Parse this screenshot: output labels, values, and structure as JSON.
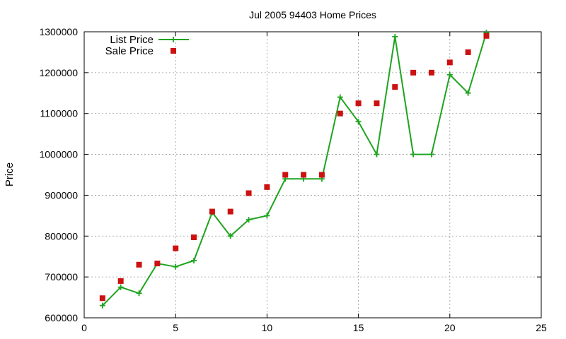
{
  "chart_data": {
    "type": "line",
    "title": "Jul 2005 94403 Home Prices",
    "xlabel": "",
    "ylabel": "Price",
    "xlim": [
      0,
      25
    ],
    "ylim": [
      600000,
      1300000
    ],
    "xticks": [
      "0",
      "5",
      "10",
      "15",
      "20",
      "25"
    ],
    "yticks": [
      "600000",
      "700000",
      "800000",
      "900000",
      "1000000",
      "1100000",
      "1200000",
      "1300000"
    ],
    "grid": true,
    "legend_position": "top-left",
    "x": [
      1,
      2,
      3,
      4,
      5,
      6,
      7,
      8,
      9,
      10,
      11,
      12,
      13,
      14,
      15,
      16,
      17,
      18,
      19,
      20,
      21,
      22
    ],
    "series": [
      {
        "name": "List Price",
        "style": "line-with-plus-markers",
        "color": "#1ea41e",
        "values": [
          630000,
          675000,
          660000,
          733000,
          725000,
          740000,
          858000,
          800000,
          840000,
          850000,
          940000,
          940000,
          940000,
          1140000,
          1080000,
          1000000,
          1288000,
          1000000,
          1000000,
          1195000,
          1150000,
          1298000
        ]
      },
      {
        "name": "Sale Price",
        "style": "square-markers",
        "color": "#cc1111",
        "values": [
          648000,
          690000,
          730000,
          733000,
          770000,
          797000,
          860000,
          860000,
          905000,
          920000,
          950000,
          950000,
          950000,
          1100000,
          1125000,
          1125000,
          1165000,
          1200000,
          1200000,
          1225000,
          1250000,
          1290000
        ]
      }
    ]
  }
}
